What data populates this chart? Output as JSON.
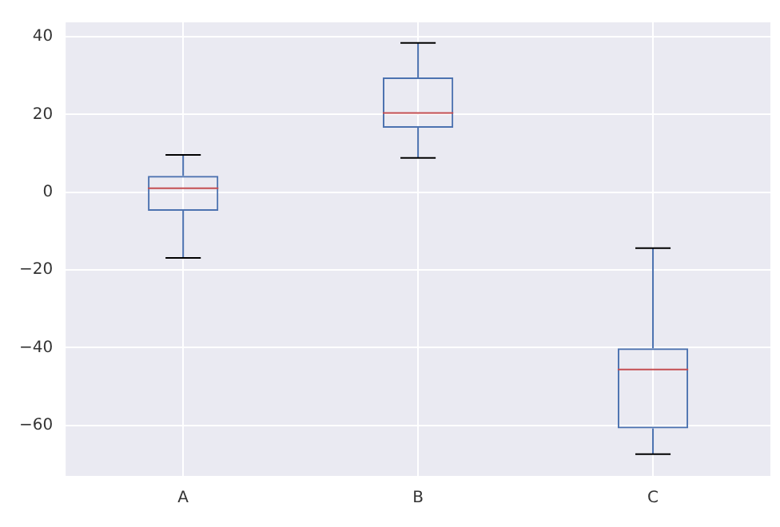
{
  "chart_data": {
    "type": "box",
    "categories": [
      "A",
      "B",
      "C"
    ],
    "boxes": [
      {
        "low": -16.9,
        "q1": -4.8,
        "median": 1.0,
        "q3": 4.2,
        "high": 9.6
      },
      {
        "low": 8.8,
        "q1": 16.6,
        "median": 20.4,
        "q3": 29.5,
        "high": 38.4
      },
      {
        "low": -67.4,
        "q1": -60.8,
        "median": -45.6,
        "q3": -40.2,
        "high": -14.4
      }
    ],
    "color": "#4c72b0",
    "ylim": [
      -73,
      43.7
    ],
    "yticks": [
      -60,
      -40,
      -20,
      0,
      20,
      40
    ],
    "grid": true
  }
}
